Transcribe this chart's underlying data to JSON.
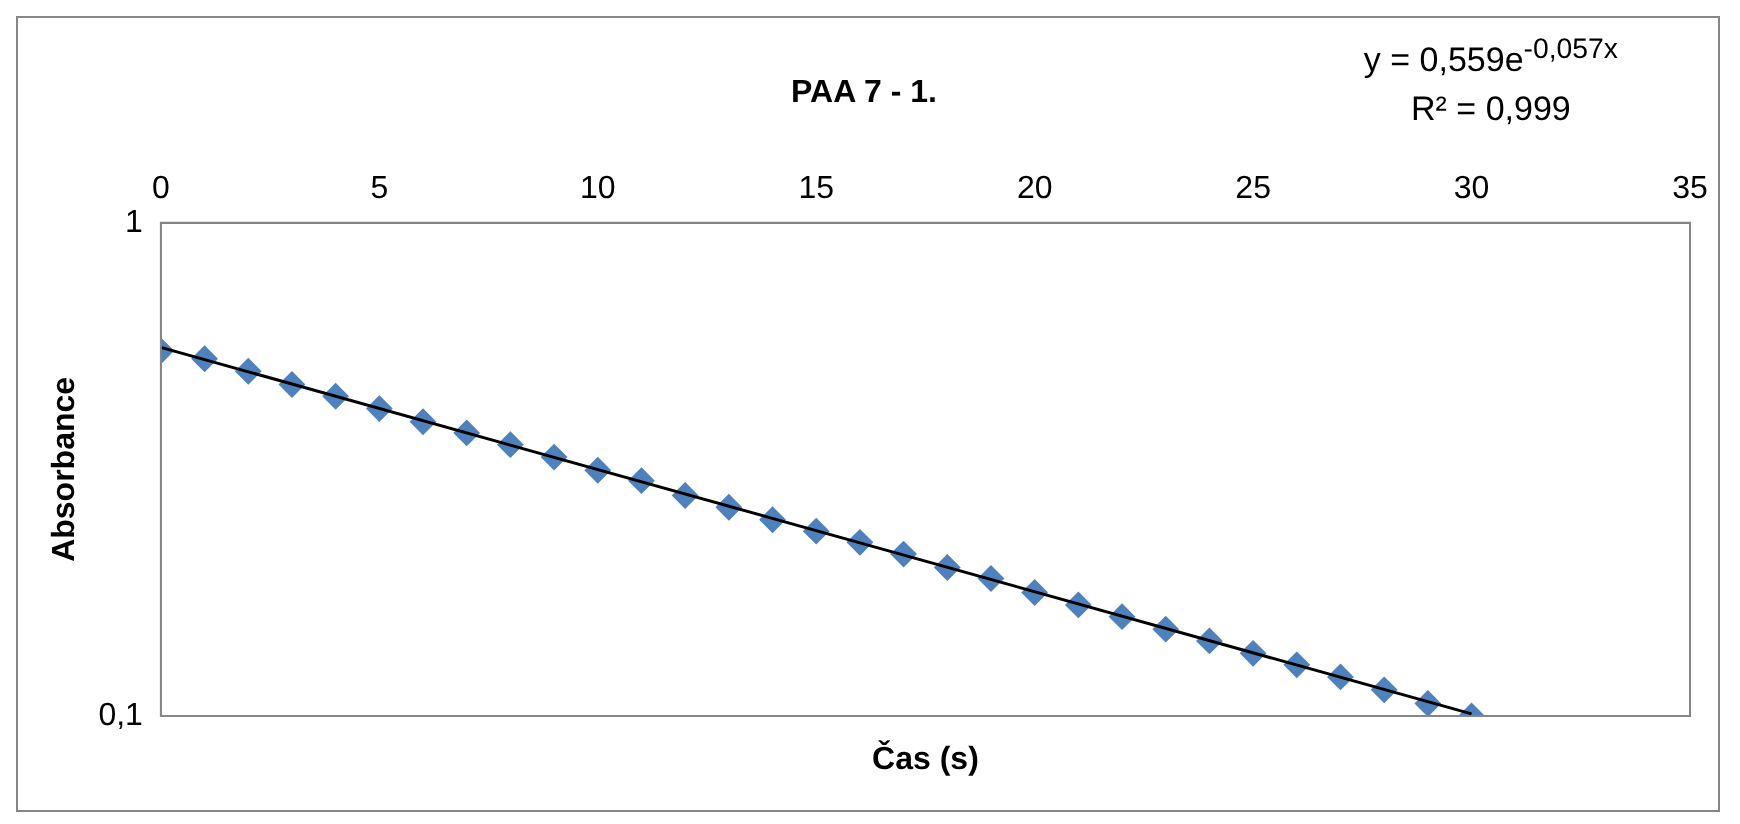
{
  "chart_data": {
    "type": "scatter",
    "title": "PAA 7 - 1.",
    "xlabel": "Čas (s)",
    "ylabel": "Absorbance",
    "annotations": [
      "y = 0,559e$^{-0,057x}$",
      "R² = 0,999"
    ],
    "x": [
      0,
      1,
      2,
      3,
      4,
      5,
      6,
      7,
      8,
      9,
      10,
      11,
      12,
      13,
      14,
      15,
      16,
      17,
      18,
      19,
      20,
      21,
      22,
      23,
      24,
      25,
      26,
      27,
      28,
      29,
      30
    ],
    "series": [
      {
        "color": "#4f81bd",
        "marker": "diamond",
        "values": [
          0.55,
          0.53,
          0.5,
          0.47,
          0.445,
          0.42,
          0.395,
          0.375,
          0.355,
          0.335,
          0.315,
          0.3,
          0.28,
          0.265,
          0.25,
          0.237,
          0.225,
          0.213,
          0.2,
          0.19,
          0.178,
          0.168,
          0.159,
          0.15,
          0.142,
          0.134,
          0.127,
          0.12,
          0.113,
          0.106,
          0.1
        ]
      },
      {
        "type": "line",
        "color": "#000000",
        "marker": "none",
        "x": [
          0,
          30
        ],
        "values": [
          0.559,
          0.101
        ]
      }
    ],
    "log": "y",
    "xlim": [
      0,
      35
    ],
    "xticks": [
      0,
      5,
      10,
      15,
      20,
      25,
      30,
      35
    ],
    "ylim": [
      0.1,
      1
    ],
    "yticks": [
      {
        "value": 0.1,
        "label": "0,1"
      },
      {
        "value": 1,
        "label": "1"
      }
    ],
    "grid": false,
    "legend": false
  }
}
